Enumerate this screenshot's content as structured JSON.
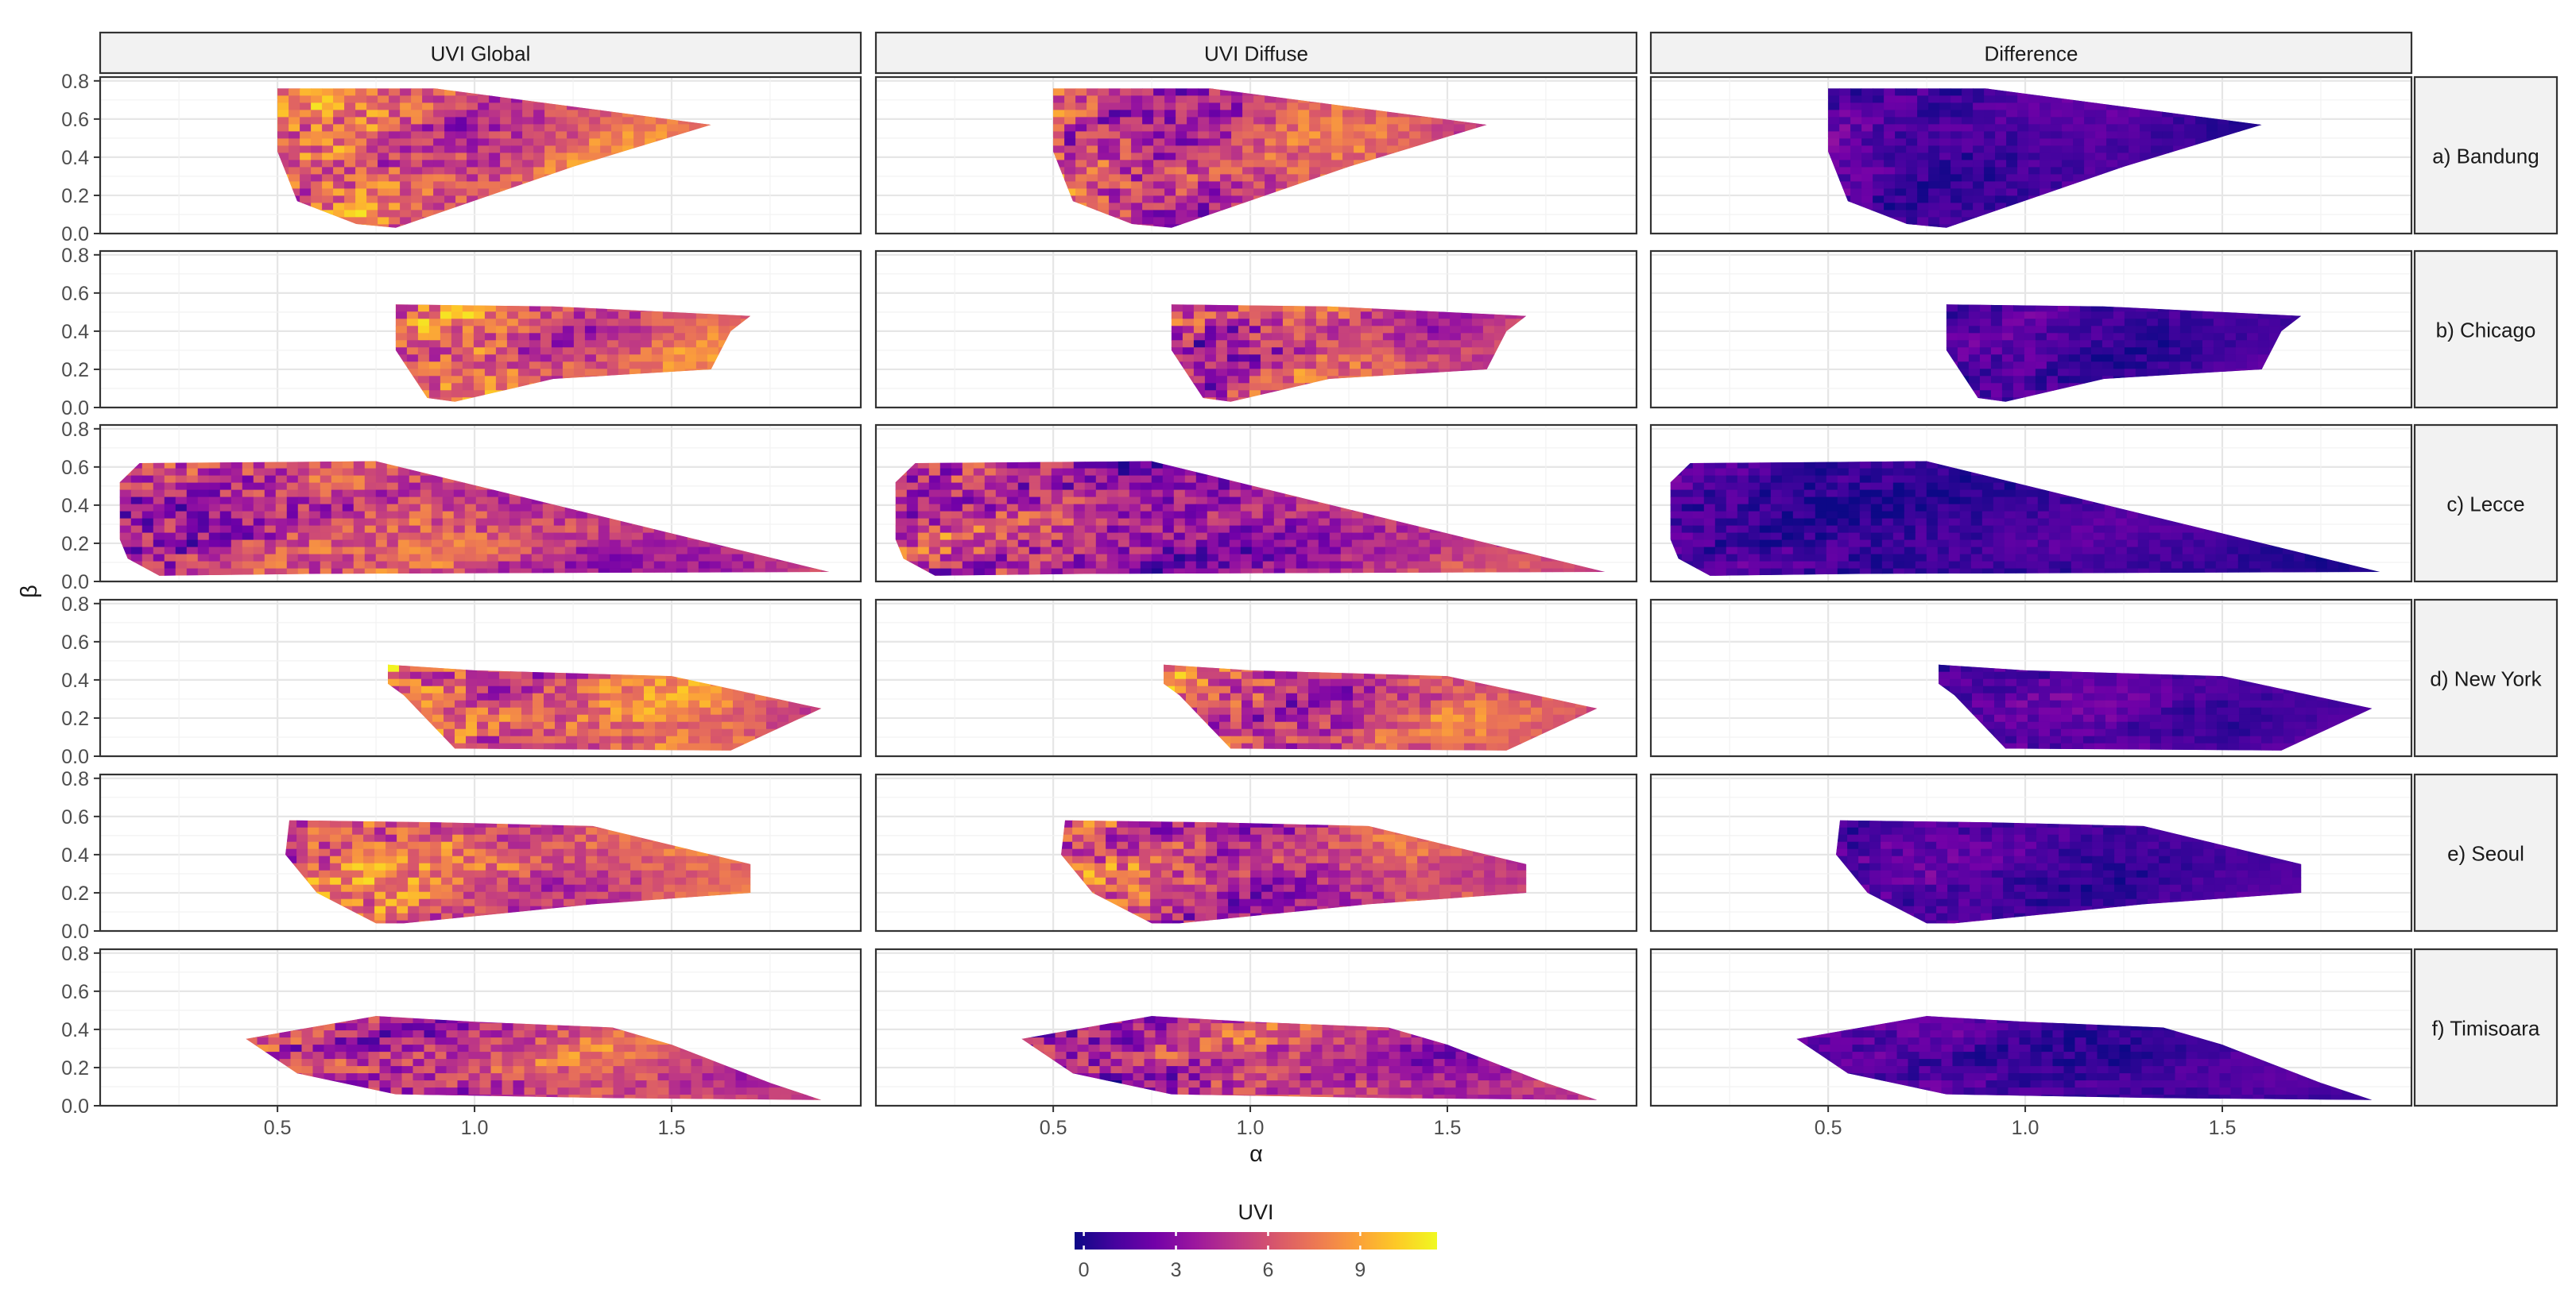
{
  "chart_data": {
    "type": "heatmap",
    "title": "",
    "xlabel": "α",
    "ylabel": "β",
    "xlim": [
      0.05,
      1.98
    ],
    "ylim": [
      0,
      0.82
    ],
    "x_ticks": [
      0.5,
      1.0,
      1.5
    ],
    "x_tick_labels": [
      "0.5",
      "1.0",
      "1.5"
    ],
    "y_ticks": [
      0,
      0.2,
      0.4,
      0.6,
      0.8
    ],
    "y_tick_labels": [
      "0.0",
      "0.2",
      "0.4",
      "0.6",
      "0.8"
    ],
    "columns": [
      "UVI Global",
      "UVI Diffuse",
      "Difference"
    ],
    "rows": [
      "a) Bandung",
      "b) Chicago",
      "c) Lecce",
      "d) New York",
      "e) Seoul",
      "f) Timisoara"
    ],
    "grid": true,
    "legend": {
      "title": "UVI",
      "position": "bottom",
      "ticks": [
        0,
        3,
        6,
        9
      ],
      "tick_labels": [
        "0",
        "3",
        "6",
        "9"
      ],
      "range": [
        -0.3,
        11.5
      ],
      "colormap": "plasma",
      "colors": [
        "#0d0887",
        "#46039f",
        "#7201a8",
        "#9c179e",
        "#bd3786",
        "#d8576b",
        "#ed7953",
        "#fb9f3a",
        "#fdca26",
        "#f0f921"
      ]
    },
    "domains": [
      [
        [
          0.5,
          0.76
        ],
        [
          0.9,
          0.76
        ],
        [
          1.6,
          0.57
        ],
        [
          1.25,
          0.35
        ],
        [
          0.8,
          0.03
        ],
        [
          0.7,
          0.05
        ],
        [
          0.55,
          0.17
        ],
        [
          0.5,
          0.43
        ]
      ],
      [
        [
          0.8,
          0.54
        ],
        [
          1.2,
          0.53
        ],
        [
          1.7,
          0.48
        ],
        [
          1.65,
          0.4
        ],
        [
          1.6,
          0.2
        ],
        [
          1.2,
          0.15
        ],
        [
          0.95,
          0.03
        ],
        [
          0.88,
          0.05
        ],
        [
          0.8,
          0.3
        ]
      ],
      [
        [
          0.1,
          0.52
        ],
        [
          0.15,
          0.62
        ],
        [
          0.75,
          0.63
        ],
        [
          1.9,
          0.05
        ],
        [
          0.6,
          0.04
        ],
        [
          0.2,
          0.03
        ],
        [
          0.12,
          0.12
        ],
        [
          0.1,
          0.22
        ]
      ],
      [
        [
          0.78,
          0.48
        ],
        [
          1.0,
          0.45
        ],
        [
          1.5,
          0.42
        ],
        [
          1.88,
          0.25
        ],
        [
          1.65,
          0.03
        ],
        [
          0.95,
          0.04
        ],
        [
          0.82,
          0.32
        ],
        [
          0.78,
          0.38
        ]
      ],
      [
        [
          0.53,
          0.58
        ],
        [
          0.9,
          0.57
        ],
        [
          1.3,
          0.55
        ],
        [
          1.7,
          0.35
        ],
        [
          1.7,
          0.2
        ],
        [
          1.3,
          0.14
        ],
        [
          0.82,
          0.04
        ],
        [
          0.75,
          0.04
        ],
        [
          0.6,
          0.2
        ],
        [
          0.52,
          0.4
        ]
      ],
      [
        [
          0.42,
          0.35
        ],
        [
          0.5,
          0.38
        ],
        [
          0.75,
          0.47
        ],
        [
          1.0,
          0.44
        ],
        [
          1.35,
          0.41
        ],
        [
          1.5,
          0.32
        ],
        [
          1.75,
          0.12
        ],
        [
          1.88,
          0.03
        ],
        [
          1.35,
          0.04
        ],
        [
          0.8,
          0.06
        ],
        [
          0.55,
          0.17
        ]
      ]
    ],
    "series": [
      {
        "name": "UVI Global",
        "mean_uvi_by_panel": [
          6.4,
          6.3,
          5.2,
          7.0,
          6.5,
          5.5
        ]
      },
      {
        "name": "UVI Diffuse",
        "mean_uvi_by_panel": [
          5.6,
          5.4,
          4.3,
          5.8,
          5.4,
          4.6
        ]
      },
      {
        "name": "Difference",
        "mean_uvi_by_panel": [
          1.2,
          1.0,
          0.8,
          1.4,
          1.1,
          1.0
        ]
      }
    ]
  }
}
